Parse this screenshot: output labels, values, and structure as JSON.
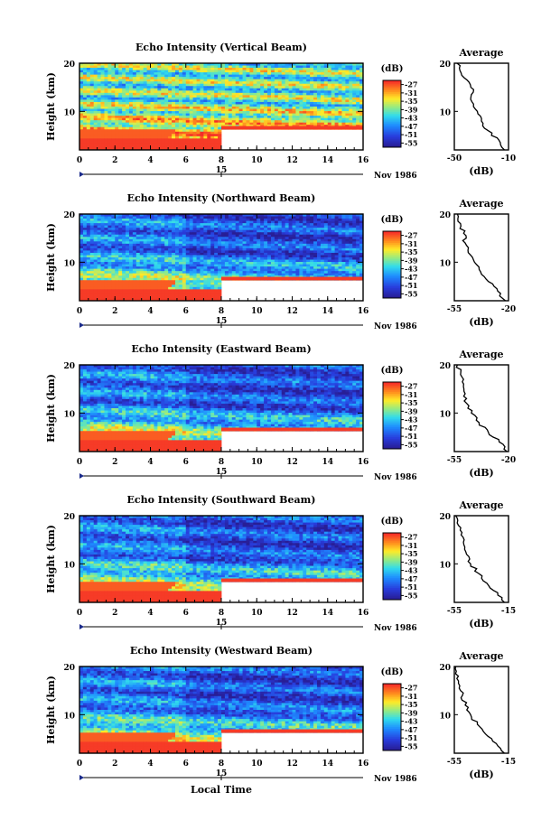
{
  "figure": {
    "x_axis_label": "Local Time",
    "date_label": "Nov 1986",
    "day_tick_label": "15",
    "height_label": "Height (km)",
    "avg_title": "Average",
    "db_label": "(dB)",
    "colorbar_unit": "(dB)",
    "colorbar_ticks": [
      "-27",
      "-31",
      "-35",
      "-39",
      "-43",
      "-47",
      "-51",
      "-55"
    ]
  },
  "chart_data": [
    {
      "type": "heatmap",
      "title": "Echo Intensity (Vertical Beam)",
      "xlabel": "Local Time",
      "ylabel": "Height (km)",
      "x_ticks": [
        "0",
        "2",
        "4",
        "6",
        "8",
        "10",
        "12",
        "14",
        "16"
      ],
      "y_ticks": [
        "10",
        "20"
      ],
      "xlim": [
        0,
        16
      ],
      "ylim": [
        2,
        20
      ],
      "colorbar": {
        "label": "(dB)",
        "range": [
          -57,
          -25
        ],
        "ticks": [
          -27,
          -31,
          -35,
          -39,
          -43,
          -47,
          -51,
          -55
        ]
      },
      "profile": {
        "title": "Average",
        "xlabel": "(dB)",
        "x_ticks": [
          "-50",
          "-10"
        ],
        "y_ticks": [
          "10",
          "20"
        ],
        "xlim": [
          -50,
          -10
        ],
        "height": [
          2,
          4,
          6,
          8,
          10,
          12,
          14,
          16,
          18,
          20
        ],
        "db": [
          -13,
          -17,
          -25,
          -30,
          -33,
          -37,
          -36,
          -39,
          -45,
          -48
        ]
      }
    },
    {
      "type": "heatmap",
      "title": "Echo Intensity (Northward Beam)",
      "xlabel": "Local Time",
      "ylabel": "Height (km)",
      "x_ticks": [
        "0",
        "2",
        "4",
        "6",
        "8",
        "10",
        "12",
        "14",
        "16"
      ],
      "y_ticks": [
        "10",
        "20"
      ],
      "xlim": [
        0,
        16
      ],
      "ylim": [
        2,
        20
      ],
      "colorbar": {
        "label": "(dB)",
        "range": [
          -57,
          -25
        ],
        "ticks": [
          -27,
          -31,
          -35,
          -39,
          -43,
          -47,
          -51,
          -55
        ]
      },
      "profile": {
        "title": "Average",
        "xlabel": "(dB)",
        "x_ticks": [
          "-55",
          "-20"
        ],
        "y_ticks": [
          "10",
          "20"
        ],
        "xlim": [
          -55,
          -20
        ],
        "height": [
          2,
          4,
          6,
          8,
          10,
          12,
          14,
          16,
          18,
          20
        ],
        "db": [
          -22,
          -27,
          -33,
          -38,
          -42,
          -46,
          -48,
          -49,
          -51,
          -53
        ]
      }
    },
    {
      "type": "heatmap",
      "title": "Echo Intensity (Eastward Beam)",
      "xlabel": "Local Time",
      "ylabel": "Height (km)",
      "x_ticks": [
        "0",
        "2",
        "4",
        "6",
        "8",
        "10",
        "12",
        "14",
        "16"
      ],
      "y_ticks": [
        "10",
        "20"
      ],
      "xlim": [
        0,
        16
      ],
      "ylim": [
        2,
        20
      ],
      "colorbar": {
        "label": "(dB)",
        "range": [
          -57,
          -25
        ],
        "ticks": [
          -27,
          -31,
          -35,
          -39,
          -43,
          -47,
          -51,
          -55
        ]
      },
      "profile": {
        "title": "Average",
        "xlabel": "(dB)",
        "x_ticks": [
          "-55",
          "-20"
        ],
        "y_ticks": [
          "10",
          "20"
        ],
        "xlim": [
          -55,
          -20
        ],
        "height": [
          2,
          4,
          6,
          8,
          10,
          12,
          14,
          16,
          18,
          20
        ],
        "db": [
          -21,
          -26,
          -33,
          -39,
          -44,
          -47,
          -48,
          -49,
          -51,
          -53
        ]
      }
    },
    {
      "type": "heatmap",
      "title": "Echo Intensity (Southward Beam)",
      "xlabel": "Local Time",
      "ylabel": "Height (km)",
      "x_ticks": [
        "0",
        "2",
        "4",
        "6",
        "8",
        "10",
        "12",
        "14",
        "16"
      ],
      "y_ticks": [
        "10",
        "20"
      ],
      "xlim": [
        0,
        16
      ],
      "ylim": [
        2,
        20
      ],
      "colorbar": {
        "label": "(dB)",
        "range": [
          -57,
          -25
        ],
        "ticks": [
          -27,
          -31,
          -35,
          -39,
          -43,
          -47,
          -51,
          -55
        ]
      },
      "profile": {
        "title": "Average",
        "xlabel": "(dB)",
        "x_ticks": [
          "-55",
          "-15"
        ],
        "y_ticks": [
          "10",
          "20"
        ],
        "xlim": [
          -55,
          -15
        ],
        "height": [
          2,
          4,
          6,
          8,
          10,
          12,
          14,
          16,
          18,
          20
        ],
        "db": [
          -18,
          -23,
          -31,
          -37,
          -43,
          -46,
          -48,
          -50,
          -52,
          -54
        ]
      }
    },
    {
      "type": "heatmap",
      "title": "Echo Intensity (Westward Beam)",
      "xlabel": "Local Time",
      "ylabel": "Height (km)",
      "x_ticks": [
        "0",
        "2",
        "4",
        "6",
        "8",
        "10",
        "12",
        "14",
        "16"
      ],
      "y_ticks": [
        "10",
        "20"
      ],
      "xlim": [
        0,
        16
      ],
      "ylim": [
        2,
        20
      ],
      "colorbar": {
        "label": "(dB)",
        "range": [
          -57,
          -25
        ],
        "ticks": [
          -27,
          -31,
          -35,
          -39,
          -43,
          -47,
          -51,
          -55
        ]
      },
      "profile": {
        "title": "Average",
        "xlabel": "(dB)",
        "x_ticks": [
          "-55",
          "-15"
        ],
        "y_ticks": [
          "10",
          "20"
        ],
        "xlim": [
          -55,
          -15
        ],
        "height": [
          2,
          4,
          6,
          8,
          10,
          12,
          14,
          16,
          18,
          20
        ],
        "db": [
          -18,
          -24,
          -32,
          -38,
          -43,
          -47,
          -49,
          -51,
          -52,
          -54
        ]
      }
    }
  ]
}
